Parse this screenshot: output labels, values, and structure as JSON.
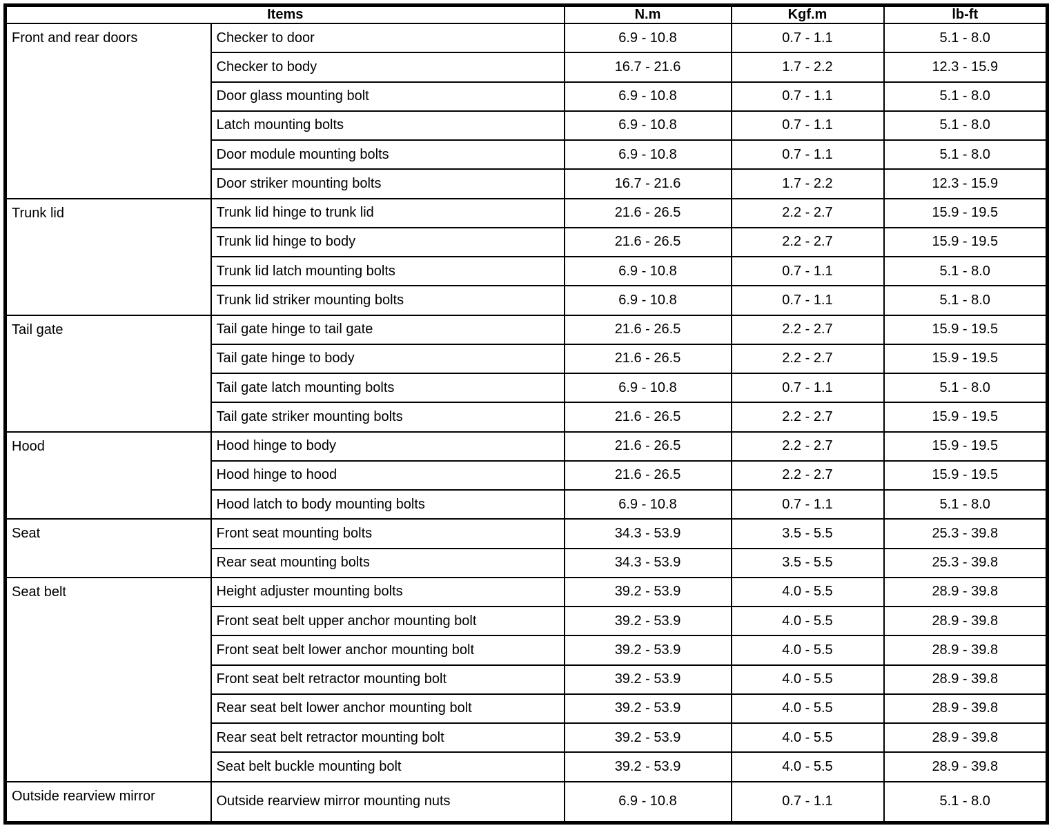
{
  "table": {
    "header": {
      "items_label": "Items",
      "unit_columns": [
        "N.m",
        "Kgf.m",
        "lb-ft"
      ]
    },
    "groups": [
      {
        "category": "Front and rear doors",
        "rows": [
          {
            "item": "Checker to door",
            "nm": "6.9 - 10.8",
            "kgfm": "0.7 - 1.1",
            "lbft": "5.1 - 8.0"
          },
          {
            "item": "Checker to body",
            "nm": "16.7 - 21.6",
            "kgfm": "1.7 - 2.2",
            "lbft": "12.3 - 15.9"
          },
          {
            "item": "Door glass mounting bolt",
            "nm": "6.9 - 10.8",
            "kgfm": "0.7 - 1.1",
            "lbft": "5.1 - 8.0"
          },
          {
            "item": "Latch mounting bolts",
            "nm": "6.9 - 10.8",
            "kgfm": "0.7 - 1.1",
            "lbft": "5.1 - 8.0"
          },
          {
            "item": "Door module mounting bolts",
            "nm": "6.9 - 10.8",
            "kgfm": "0.7 - 1.1",
            "lbft": "5.1 - 8.0"
          },
          {
            "item": "Door striker mounting bolts",
            "nm": "16.7 - 21.6",
            "kgfm": "1.7 - 2.2",
            "lbft": "12.3 - 15.9"
          }
        ]
      },
      {
        "category": "Trunk lid",
        "rows": [
          {
            "item": "Trunk lid hinge to trunk lid",
            "nm": "21.6 - 26.5",
            "kgfm": "2.2 - 2.7",
            "lbft": "15.9 - 19.5"
          },
          {
            "item": "Trunk lid hinge to body",
            "nm": "21.6 - 26.5",
            "kgfm": "2.2 - 2.7",
            "lbft": "15.9 - 19.5"
          },
          {
            "item": "Trunk lid latch mounting bolts",
            "nm": "6.9 - 10.8",
            "kgfm": "0.7 - 1.1",
            "lbft": "5.1 - 8.0"
          },
          {
            "item": "Trunk lid striker mounting bolts",
            "nm": "6.9 - 10.8",
            "kgfm": "0.7 - 1.1",
            "lbft": "5.1 - 8.0"
          }
        ]
      },
      {
        "category": "Tail gate",
        "rows": [
          {
            "item": "Tail gate hinge to tail gate",
            "nm": "21.6 - 26.5",
            "kgfm": "2.2 - 2.7",
            "lbft": "15.9 - 19.5"
          },
          {
            "item": "Tail gate hinge to body",
            "nm": "21.6 - 26.5",
            "kgfm": "2.2 - 2.7",
            "lbft": "15.9 - 19.5"
          },
          {
            "item": "Tail gate latch mounting bolts",
            "nm": "6.9 - 10.8",
            "kgfm": "0.7 - 1.1",
            "lbft": "5.1 - 8.0"
          },
          {
            "item": "Tail gate striker mounting bolts",
            "nm": "21.6 - 26.5",
            "kgfm": "2.2 - 2.7",
            "lbft": "15.9 - 19.5"
          }
        ]
      },
      {
        "category": "Hood",
        "rows": [
          {
            "item": "Hood hinge to body",
            "nm": "21.6 - 26.5",
            "kgfm": "2.2 - 2.7",
            "lbft": "15.9 - 19.5"
          },
          {
            "item": "Hood hinge to hood",
            "nm": "21.6 - 26.5",
            "kgfm": "2.2 - 2.7",
            "lbft": "15.9 - 19.5"
          },
          {
            "item": "Hood latch to body mounting bolts",
            "nm": "6.9 - 10.8",
            "kgfm": "0.7 - 1.1",
            "lbft": "5.1 - 8.0"
          }
        ]
      },
      {
        "category": "Seat",
        "rows": [
          {
            "item": "Front seat mounting bolts",
            "nm": "34.3 - 53.9",
            "kgfm": "3.5 - 5.5",
            "lbft": "25.3 - 39.8"
          },
          {
            "item": "Rear seat mounting bolts",
            "nm": "34.3 - 53.9",
            "kgfm": "3.5 - 5.5",
            "lbft": "25.3 - 39.8"
          }
        ]
      },
      {
        "category": "Seat belt",
        "rows": [
          {
            "item": "Height adjuster mounting bolts",
            "nm": "39.2 - 53.9",
            "kgfm": "4.0 - 5.5",
            "lbft": "28.9 - 39.8"
          },
          {
            "item": "Front seat belt upper anchor mounting bolt",
            "nm": "39.2 - 53.9",
            "kgfm": "4.0 - 5.5",
            "lbft": "28.9 - 39.8"
          },
          {
            "item": "Front seat belt lower anchor mounting bolt",
            "nm": "39.2 - 53.9",
            "kgfm": "4.0 - 5.5",
            "lbft": "28.9 - 39.8"
          },
          {
            "item": "Front seat belt retractor mounting bolt",
            "nm": "39.2 - 53.9",
            "kgfm": "4.0 - 5.5",
            "lbft": "28.9 - 39.8"
          },
          {
            "item": "Rear seat belt lower anchor mounting bolt",
            "nm": "39.2 - 53.9",
            "kgfm": "4.0 - 5.5",
            "lbft": "28.9 - 39.8"
          },
          {
            "item": "Rear seat belt retractor mounting bolt",
            "nm": "39.2 - 53.9",
            "kgfm": "4.0 - 5.5",
            "lbft": "28.9 - 39.8"
          },
          {
            "item": "Seat belt buckle mounting bolt",
            "nm": "39.2 - 53.9",
            "kgfm": "4.0 - 5.5",
            "lbft": "28.9 - 39.8"
          }
        ]
      },
      {
        "category": "Outside rearview mirror",
        "rows": [
          {
            "item": "Outside rearview mirror mounting nuts",
            "nm": "6.9 - 10.8",
            "kgfm": "0.7 - 1.1",
            "lbft": "5.1 - 8.0"
          }
        ]
      }
    ]
  }
}
